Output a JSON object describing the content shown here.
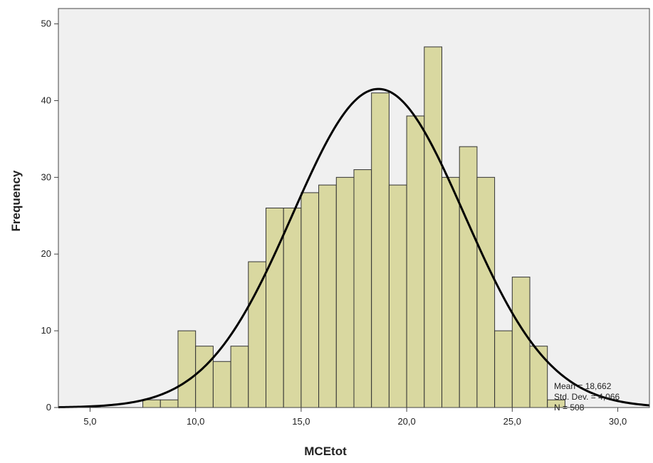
{
  "chart_data": {
    "type": "bar",
    "xlabel": "MCEtot",
    "ylabel": "Frequency",
    "xlim": [
      3.5,
      31.5
    ],
    "ylim": [
      0,
      52
    ],
    "x_ticks": [
      5,
      10,
      15,
      20,
      25,
      30
    ],
    "x_tick_labels": [
      "5,0",
      "10,0",
      "15,0",
      "20,0",
      "25,0",
      "30,0"
    ],
    "y_ticks": [
      0,
      10,
      20,
      30,
      40,
      50
    ],
    "y_tick_labels": [
      "0",
      "10",
      "20",
      "30",
      "40",
      "50"
    ],
    "bin_width": 0.833,
    "bins": [
      {
        "left": 7.5,
        "value": 1
      },
      {
        "left": 8.333,
        "value": 1
      },
      {
        "left": 9.167,
        "value": 10
      },
      {
        "left": 10.0,
        "value": 8
      },
      {
        "left": 10.833,
        "value": 6
      },
      {
        "left": 11.667,
        "value": 8
      },
      {
        "left": 12.5,
        "value": 19
      },
      {
        "left": 13.333,
        "value": 26
      },
      {
        "left": 14.167,
        "value": 26
      },
      {
        "left": 15.0,
        "value": 28
      },
      {
        "left": 15.833,
        "value": 29
      },
      {
        "left": 16.667,
        "value": 30
      },
      {
        "left": 17.5,
        "value": 31
      },
      {
        "left": 18.333,
        "value": 41
      },
      {
        "left": 19.167,
        "value": 29
      },
      {
        "left": 20.0,
        "value": 38
      },
      {
        "left": 20.833,
        "value": 47
      },
      {
        "left": 21.667,
        "value": 30
      },
      {
        "left": 22.5,
        "value": 34
      },
      {
        "left": 23.333,
        "value": 30
      },
      {
        "left": 24.167,
        "value": 10
      },
      {
        "left": 25.0,
        "value": 17
      },
      {
        "left": 25.833,
        "value": 8
      },
      {
        "left": 26.667,
        "value": 1
      }
    ],
    "normal_curve": {
      "mean": 18.662,
      "std": 4.066,
      "n": 508
    },
    "grid": false,
    "colors": {
      "bar_fill": "#d9d8a0",
      "bar_stroke": "#333333",
      "plot_bg": "#f0f0f0",
      "curve": "#000000"
    }
  },
  "stats": {
    "mean": "Mean = 18,662",
    "std": "Std. Dev. = 4,066",
    "n": "N = 508"
  }
}
